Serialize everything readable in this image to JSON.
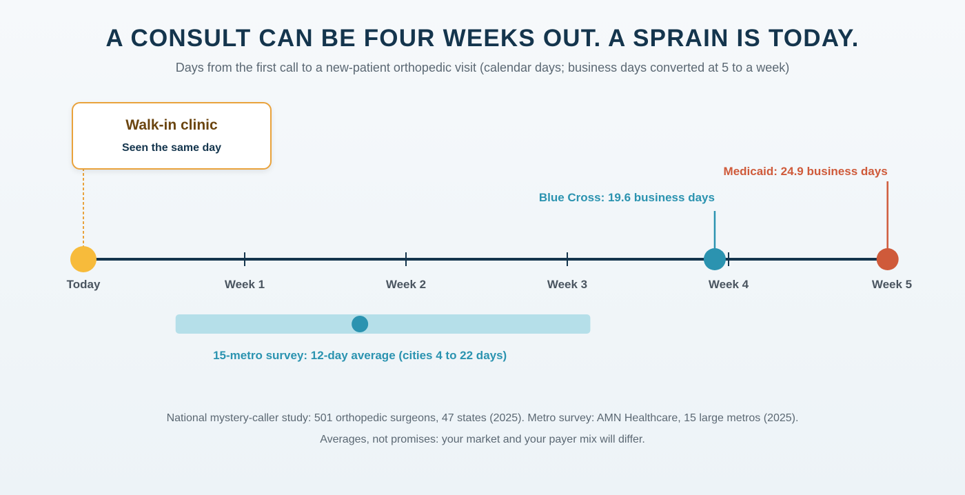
{
  "header": {
    "title": "A CONSULT CAN BE FOUR WEEKS OUT. A SPRAIN IS TODAY.",
    "subtitle": "Days from the first call to a new-patient orthopedic visit (calendar days; business days converted at 5 to a week)"
  },
  "callout": {
    "title": "Walk-in clinic",
    "subtitle": "Seen the same day"
  },
  "chart_data": {
    "type": "timeline",
    "x_unit": "calendar days",
    "xlim": [
      0,
      35
    ],
    "ticks": [
      {
        "label": "Today",
        "day": 0
      },
      {
        "label": "Week 1",
        "day": 7
      },
      {
        "label": "Week 2",
        "day": 14
      },
      {
        "label": "Week 3",
        "day": 21
      },
      {
        "label": "Week 4",
        "day": 28
      },
      {
        "label": "Week 5",
        "day": 35
      }
    ],
    "markers": [
      {
        "label": "Walk-in clinic",
        "day": 0,
        "color": "#f7bb3b"
      },
      {
        "label": "Blue Cross: 19.6 business days",
        "business_days": 19.6,
        "day": 27.4,
        "color": "#2b93b0"
      },
      {
        "label": "Medicaid: 24.9 business days",
        "business_days": 24.9,
        "day": 34.9,
        "color": "#cf5a3a"
      }
    ],
    "range": {
      "label": "15-metro survey: 12-day average (cities 4 to 22 days)",
      "min": 4,
      "max": 22,
      "average": 12,
      "color": "#b5dfe9",
      "dot_color": "#2b93b0"
    },
    "axis_color": "#14354d"
  },
  "footer": {
    "note1": "National mystery-caller study: 501 orthopedic surgeons, 47 states (2025). Metro survey: AMN Healthcare, 15 large metros (2025).",
    "note2": "Averages, not promises: your market and your payer mix will differ."
  }
}
